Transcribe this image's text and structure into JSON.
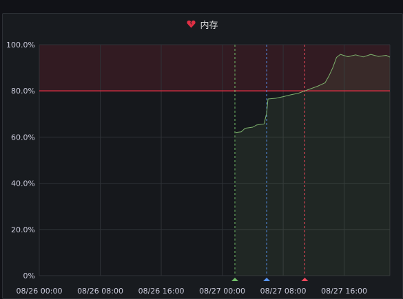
{
  "panel": {
    "title": "内存",
    "title_icon": "broken-heart-icon",
    "title_icon_color": "#e02f44"
  },
  "chart_data": {
    "type": "area",
    "title": "内存",
    "xlabel": "",
    "ylabel": "",
    "x_range": [
      "08/26 00:00",
      "08/27 22:00"
    ],
    "ylim": [
      0,
      100
    ],
    "y_ticks": [
      "0%",
      "20.0%",
      "40.0%",
      "60.0%",
      "80.0%",
      "100.0%"
    ],
    "x_ticks": [
      "08/26 00:00",
      "08/26 08:00",
      "08/26 16:00",
      "08/27 00:00",
      "08/27 08:00",
      "08/27 16:00"
    ],
    "grid": true,
    "threshold": {
      "value": 80,
      "color": "#e02f44"
    },
    "annotations": [
      {
        "time": "08/27 01:40",
        "color": "#73bf69"
      },
      {
        "time": "08/27 05:50",
        "color": "#5794f2"
      },
      {
        "time": "08/27 10:50",
        "color": "#f2495c"
      }
    ],
    "series": [
      {
        "color": "#7eb26d",
        "points": [
          [
            "08/27 01:45",
            62.0
          ],
          [
            "08/27 02:30",
            62.3
          ],
          [
            "08/27 03:00",
            63.8
          ],
          [
            "08/27 04:00",
            64.3
          ],
          [
            "08/27 04:30",
            65.2
          ],
          [
            "08/27 05:30",
            65.7
          ],
          [
            "08/27 05:50",
            70.5
          ],
          [
            "08/27 06:00",
            76.5
          ],
          [
            "08/27 07:00",
            76.8
          ],
          [
            "08/27 08:00",
            77.5
          ],
          [
            "08/27 09:00",
            78.3
          ],
          [
            "08/27 10:00",
            79.0
          ],
          [
            "08/27 10:50",
            80.0
          ],
          [
            "08/27 11:30",
            80.8
          ],
          [
            "08/27 12:30",
            82.0
          ],
          [
            "08/27 13:30",
            83.5
          ],
          [
            "08/27 14:00",
            86.5
          ],
          [
            "08/27 14:30",
            90.0
          ],
          [
            "08/27 15:00",
            94.5
          ],
          [
            "08/27 15:30",
            95.8
          ],
          [
            "08/27 16:30",
            94.8
          ],
          [
            "08/27 17:30",
            95.6
          ],
          [
            "08/27 18:30",
            94.7
          ],
          [
            "08/27 19:30",
            95.8
          ],
          [
            "08/27 20:30",
            94.9
          ],
          [
            "08/27 21:30",
            95.4
          ],
          [
            "08/27 22:00",
            94.6
          ]
        ]
      }
    ]
  }
}
